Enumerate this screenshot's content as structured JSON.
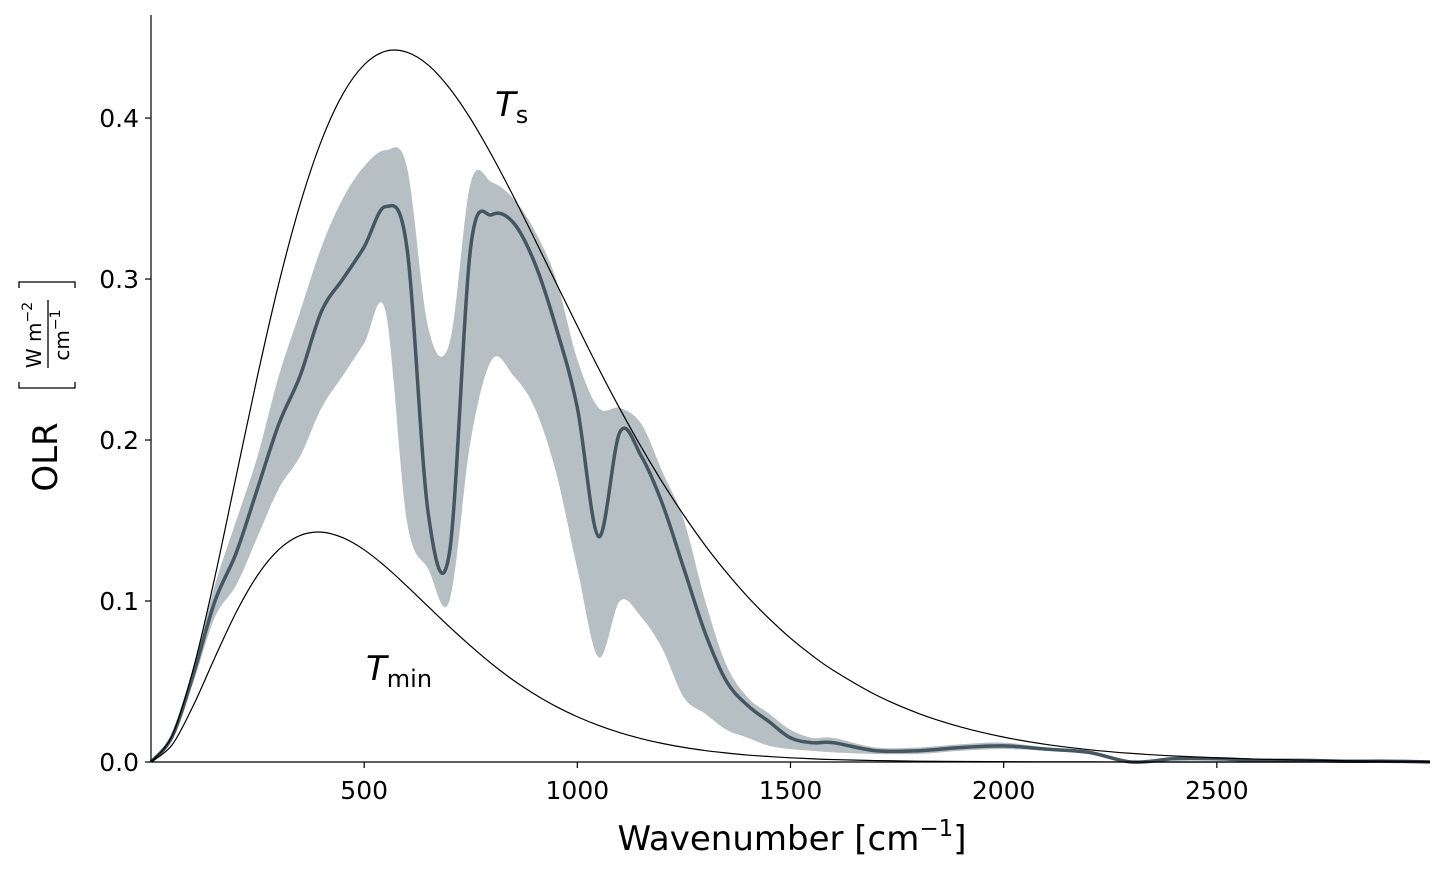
{
  "chart_data": {
    "type": "line",
    "x_label": {
      "text": "Wavenumber [cm",
      "sup": "−1",
      "end": "]"
    },
    "y_label": {
      "text": "OLR",
      "num": "W m",
      "num_sup": "−2",
      "den": "cm",
      "den_sup": "−1"
    },
    "annotations": [
      {
        "text": "T",
        "sub": "s"
      },
      {
        "text": "T",
        "sub": "min"
      }
    ],
    "x": [
      0,
      50,
      100,
      150,
      200,
      250,
      300,
      350,
      400,
      450,
      500,
      550,
      600,
      650,
      700,
      750,
      800,
      850,
      900,
      950,
      1000,
      1050,
      1100,
      1150,
      1200,
      1250,
      1300,
      1350,
      1400,
      1450,
      1500,
      1550,
      1600,
      1700,
      1800,
      1900,
      2000,
      2100,
      2200,
      2300,
      2400,
      2500,
      2600,
      2700,
      2800,
      2900,
      3000
    ],
    "series": [
      {
        "kind": "band",
        "color": "#b2bcc1",
        "values": [
          0,
          0.018,
          0.06,
          0.11,
          0.15,
          0.19,
          0.24,
          0.28,
          0.32,
          0.35,
          0.37,
          0.38,
          0.37,
          0.27,
          0.26,
          0.36,
          0.36,
          0.35,
          0.33,
          0.3,
          0.25,
          0.22,
          0.22,
          0.21,
          0.18,
          0.15,
          0.1,
          0.06,
          0.04,
          0.03,
          0.02,
          0.015,
          0.015,
          0.009,
          0.009,
          0.011,
          0.012,
          0.009,
          0.007,
          0,
          0.002,
          0.002,
          0.001,
          0.001,
          0.0005,
          0.0005,
          0
        ],
        "lower": [
          0,
          0.014,
          0.05,
          0.09,
          0.11,
          0.14,
          0.17,
          0.19,
          0.22,
          0.24,
          0.26,
          0.28,
          0.15,
          0.12,
          0.1,
          0.2,
          0.25,
          0.24,
          0.22,
          0.18,
          0.12,
          0.065,
          0.1,
          0.09,
          0.07,
          0.04,
          0.03,
          0.02,
          0.015,
          0.01,
          0.008,
          0.007,
          0.006,
          0.005,
          0.005,
          0.007,
          0.008,
          0.007,
          0.005,
          0,
          0.002,
          0.002,
          0.001,
          0.001,
          0.0005,
          0.0005,
          0
        ]
      },
      {
        "kind": "line",
        "color": "#44565f",
        "width": 3.5,
        "values": [
          0,
          0.016,
          0.055,
          0.1,
          0.13,
          0.17,
          0.21,
          0.24,
          0.28,
          0.3,
          0.32,
          0.345,
          0.32,
          0.155,
          0.13,
          0.32,
          0.34,
          0.335,
          0.31,
          0.27,
          0.22,
          0.14,
          0.205,
          0.19,
          0.16,
          0.12,
          0.08,
          0.05,
          0.035,
          0.025,
          0.015,
          0.012,
          0.012,
          0.007,
          0.007,
          0.009,
          0.01,
          0.008,
          0.006,
          0,
          0.002,
          0.002,
          0.001,
          0.001,
          0.0005,
          0.0005,
          0
        ]
      },
      {
        "kind": "line",
        "color": "#000000",
        "width": 1.2,
        "values": [
          0,
          0.0167,
          0.0586,
          0.1151,
          0.1778,
          0.2401,
          0.2975,
          0.3467,
          0.3861,
          0.4149,
          0.4331,
          0.4415,
          0.4409,
          0.433,
          0.4186,
          0.3994,
          0.3765,
          0.3514,
          0.3248,
          0.2976,
          0.2708,
          0.2444,
          0.2193,
          0.1956,
          0.1735,
          0.1532,
          0.1345,
          0.1177,
          0.1025,
          0.089,
          0.0769,
          0.0663,
          0.057,
          0.0417,
          0.0302,
          0.0217,
          0.01545,
          0.01092,
          0.00766,
          0.00534,
          0.00371,
          0.00256,
          0.00176,
          0.0012,
          0.00082,
          0.00056,
          0.00037
        ]
      },
      {
        "kind": "line",
        "color": "#000000",
        "width": 1.2,
        "values": [
          0,
          0.0108,
          0.0355,
          0.065,
          0.0931,
          0.116,
          0.132,
          0.1407,
          0.1428,
          0.1393,
          0.1318,
          0.1214,
          0.1093,
          0.0966,
          0.084,
          0.072,
          0.0608,
          0.0508,
          0.0421,
          0.0345,
          0.0281,
          0.0227,
          0.0182,
          0.0145,
          0.0115,
          0.0091,
          0.0071,
          0.0056,
          0.0043,
          0.0034,
          0.0026,
          0.002,
          0.0015,
          0.0009,
          0.0005,
          0.0003,
          0.0002,
          0.0001,
          0.0001,
          0,
          0,
          0,
          0,
          0,
          0,
          0,
          0
        ]
      }
    ],
    "xlim": [
      0,
      3000
    ],
    "xticks": [
      500,
      1000,
      1500,
      2000,
      2500
    ],
    "ylim": [
      0,
      0.464
    ],
    "yticks": [
      {
        "value": 0,
        "label": "0.0"
      },
      0.1,
      0.2,
      0.3,
      0.4
    ],
    "grid": false
  }
}
